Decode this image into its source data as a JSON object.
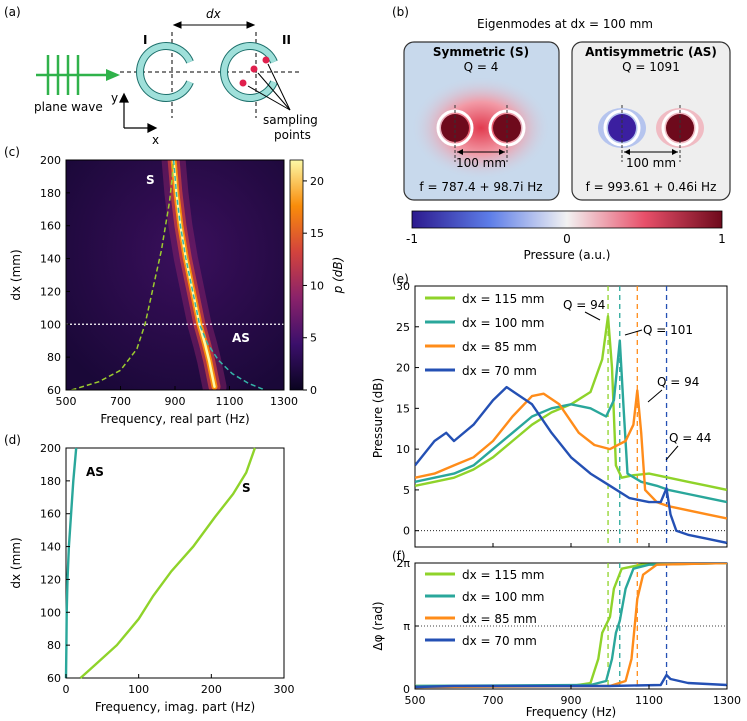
{
  "panel_labels": {
    "a": "(a)",
    "b": "(b)",
    "c": "(c)",
    "d": "(d)",
    "e": "(e)",
    "f": "(f)"
  },
  "schematic": {
    "dx_label": "dx",
    "resonator_1": "I",
    "resonator_2": "II",
    "plane_wave": "plane wave",
    "axis_y": "y",
    "axis_x": "x",
    "sampling_line1": "sampling",
    "sampling_line2": "points"
  },
  "eigenmodes": {
    "title": "Eigenmodes at dx = 100 mm",
    "symmetric": {
      "name": "Symmetric (S)",
      "q": "Q = 4",
      "gap": "100 mm",
      "freq": "f = 787.4 + 98.7i Hz"
    },
    "antisymmetric": {
      "name": "Antisymmetric (AS)",
      "q": "Q = 1091",
      "gap": "100 mm",
      "freq": "f = 993.61 + 0.46i Hz"
    },
    "colorbar": {
      "label": "Pressure (a.u.)",
      "ticks": [
        "-1",
        "0",
        "1"
      ]
    }
  },
  "colors": {
    "c115": "#8fd32a",
    "c100": "#2aa79b",
    "c85": "#ff8c1a",
    "c70": "#2450b4",
    "S_curve": "#9ccc2f",
    "AS_curve": "#35b5a8",
    "panel_bg": "#c8d9ec",
    "cmap_low": "#230e45",
    "cmap_high": "#fbe876"
  },
  "chart_data": [
    {
      "id": "c",
      "type": "heatmap",
      "xlabel": "Frequency, real part (Hz)",
      "ylabel": "dx (mm)",
      "xlim": [
        500,
        1300
      ],
      "ylim": [
        60,
        200
      ],
      "xticks": [
        "500",
        "700",
        "900",
        "1100",
        "1300"
      ],
      "yticks": [
        "60",
        "80",
        "100",
        "120",
        "140",
        "160",
        "180",
        "200"
      ],
      "colorbar": {
        "label": "p (dB)",
        "range": [
          0,
          22
        ],
        "ticks": [
          "0",
          "5",
          "10",
          "15",
          "20"
        ]
      },
      "annotations": [
        "S",
        "AS"
      ],
      "reference_line_dx": 100,
      "S_branch": [
        [
          520,
          60
        ],
        [
          620,
          65
        ],
        [
          700,
          72
        ],
        [
          760,
          85
        ],
        [
          790,
          100
        ],
        [
          810,
          115
        ],
        [
          830,
          130
        ],
        [
          850,
          145
        ],
        [
          865,
          160
        ],
        [
          880,
          175
        ],
        [
          890,
          190
        ],
        [
          895,
          200
        ]
      ],
      "AS_branch": [
        [
          895,
          200
        ],
        [
          905,
          180
        ],
        [
          920,
          160
        ],
        [
          940,
          140
        ],
        [
          965,
          120
        ],
        [
          990,
          100
        ],
        [
          1020,
          88
        ],
        [
          1060,
          78
        ],
        [
          1110,
          70
        ],
        [
          1170,
          64
        ],
        [
          1230,
          60
        ]
      ],
      "ridge": [
        [
          895,
          200
        ],
        [
          905,
          180
        ],
        [
          920,
          160
        ],
        [
          940,
          140
        ],
        [
          965,
          120
        ],
        [
          990,
          100
        ],
        [
          1010,
          88
        ],
        [
          1025,
          78
        ],
        [
          1035,
          70
        ],
        [
          1045,
          62
        ]
      ]
    },
    {
      "id": "d",
      "type": "line",
      "xlabel": "Frequency, imag. part (Hz)",
      "ylabel": "dx (mm)",
      "xlim": [
        0,
        300
      ],
      "ylim": [
        60,
        200
      ],
      "xticks": [
        "0",
        "100",
        "200",
        "300"
      ],
      "yticks": [
        "60",
        "80",
        "100",
        "120",
        "140",
        "160",
        "180",
        "200"
      ],
      "series": [
        {
          "name": "AS",
          "points": [
            [
              0,
              60
            ],
            [
              0.5,
              80
            ],
            [
              1,
              100
            ],
            [
              2,
              120
            ],
            [
              4,
              140
            ],
            [
              7,
              160
            ],
            [
              10,
              180
            ],
            [
              14,
              200
            ]
          ]
        },
        {
          "name": "S",
          "points": [
            [
              20,
              60
            ],
            [
              40,
              68
            ],
            [
              70,
              80
            ],
            [
              100,
              96
            ],
            [
              120,
              110
            ],
            [
              145,
              125
            ],
            [
              175,
              140
            ],
            [
              205,
              158
            ],
            [
              230,
              172
            ],
            [
              248,
              185
            ],
            [
              260,
              200
            ]
          ]
        }
      ]
    },
    {
      "id": "e",
      "type": "line",
      "xlabel": "",
      "ylabel": "Pressure (dB)",
      "xlim": [
        500,
        1300
      ],
      "ylim": [
        -2,
        30
      ],
      "xticks": [
        "500",
        "700",
        "900",
        "1100",
        "1300"
      ],
      "yticks": [
        "0",
        "5",
        "10",
        "15",
        "20",
        "25",
        "30"
      ],
      "annotations": [
        "Q = 94",
        "Q = 101",
        "Q = 94",
        "Q = 44"
      ],
      "vlines": [
        995,
        1025,
        1070,
        1145
      ],
      "series": [
        {
          "name": "dx = 115 mm",
          "points": [
            [
              500,
              5.5
            ],
            [
              550,
              6
            ],
            [
              600,
              6.5
            ],
            [
              650,
              7.5
            ],
            [
              700,
              9
            ],
            [
              750,
              11
            ],
            [
              800,
              13
            ],
            [
              850,
              14.5
            ],
            [
              900,
              15.5
            ],
            [
              950,
              17
            ],
            [
              980,
              21
            ],
            [
              995,
              26.3
            ],
            [
              1005,
              20
            ],
            [
              1015,
              8
            ],
            [
              1030,
              6.5
            ],
            [
              1060,
              6.8
            ],
            [
              1100,
              7
            ],
            [
              1150,
              6.5
            ],
            [
              1200,
              6
            ],
            [
              1250,
              5.5
            ],
            [
              1300,
              5
            ]
          ]
        },
        {
          "name": "dx = 100 mm",
          "points": [
            [
              500,
              6
            ],
            [
              550,
              6.5
            ],
            [
              600,
              7
            ],
            [
              650,
              8
            ],
            [
              700,
              10
            ],
            [
              750,
              12
            ],
            [
              800,
              14
            ],
            [
              850,
              15
            ],
            [
              900,
              15.5
            ],
            [
              950,
              15
            ],
            [
              990,
              14
            ],
            [
              1010,
              16
            ],
            [
              1025,
              23.3
            ],
            [
              1035,
              15
            ],
            [
              1045,
              7
            ],
            [
              1080,
              6
            ],
            [
              1120,
              5.5
            ],
            [
              1150,
              5
            ],
            [
              1200,
              4.5
            ],
            [
              1250,
              4
            ],
            [
              1300,
              3.5
            ]
          ]
        },
        {
          "name": "dx = 85 mm",
          "points": [
            [
              500,
              6.5
            ],
            [
              550,
              7
            ],
            [
              600,
              8
            ],
            [
              650,
              9
            ],
            [
              700,
              11
            ],
            [
              750,
              14
            ],
            [
              800,
              16.5
            ],
            [
              830,
              16.8
            ],
            [
              870,
              15.5
            ],
            [
              920,
              12
            ],
            [
              960,
              10.5
            ],
            [
              1000,
              10
            ],
            [
              1040,
              11
            ],
            [
              1060,
              13
            ],
            [
              1070,
              17.2
            ],
            [
              1080,
              12
            ],
            [
              1090,
              5
            ],
            [
              1120,
              3.5
            ],
            [
              1150,
              3
            ],
            [
              1200,
              2.5
            ],
            [
              1250,
              2
            ],
            [
              1300,
              1.5
            ]
          ]
        },
        {
          "name": "dx = 70 mm",
          "points": [
            [
              500,
              8
            ],
            [
              550,
              11
            ],
            [
              580,
              12
            ],
            [
              600,
              11
            ],
            [
              650,
              13
            ],
            [
              700,
              16
            ],
            [
              735,
              17.6
            ],
            [
              760,
              16.8
            ],
            [
              800,
              15.5
            ],
            [
              850,
              12
            ],
            [
              900,
              9
            ],
            [
              950,
              7
            ],
            [
              1000,
              5.5
            ],
            [
              1050,
              4
            ],
            [
              1100,
              3.5
            ],
            [
              1130,
              3.5
            ],
            [
              1145,
              5.2
            ],
            [
              1155,
              2
            ],
            [
              1170,
              0
            ],
            [
              1200,
              -0.5
            ],
            [
              1250,
              -1
            ],
            [
              1300,
              -1.5
            ]
          ]
        }
      ]
    },
    {
      "id": "f",
      "type": "line",
      "xlabel": "Frequency (Hz)",
      "ylabel": "Δφ (rad)",
      "xlim": [
        500,
        1300
      ],
      "ylim": [
        0,
        6.2832
      ],
      "xticks": [
        "500",
        "700",
        "900",
        "1100",
        "1300"
      ],
      "yticks": [
        "0",
        "π",
        "2π"
      ],
      "vlines": [
        995,
        1025,
        1070,
        1145
      ],
      "series": [
        {
          "name": "dx = 115 mm",
          "points": [
            [
              500,
              0.15
            ],
            [
              900,
              0.15
            ],
            [
              950,
              0.3
            ],
            [
              970,
              1.5
            ],
            [
              980,
              2.8
            ],
            [
              990,
              3.2
            ],
            [
              1000,
              3.6
            ],
            [
              1010,
              5.0
            ],
            [
              1030,
              6.0
            ],
            [
              1080,
              6.2
            ],
            [
              1300,
              6.28
            ]
          ]
        },
        {
          "name": "dx = 100 mm",
          "points": [
            [
              500,
              0.15
            ],
            [
              950,
              0.2
            ],
            [
              990,
              0.4
            ],
            [
              1005,
              1.5
            ],
            [
              1015,
              2.8
            ],
            [
              1025,
              3.4
            ],
            [
              1040,
              5.0
            ],
            [
              1060,
              6.0
            ],
            [
              1100,
              6.2
            ],
            [
              1300,
              6.28
            ]
          ]
        },
        {
          "name": "dx = 85 mm",
          "points": [
            [
              500,
              0.1
            ],
            [
              1000,
              0.15
            ],
            [
              1040,
              0.4
            ],
            [
              1055,
              1.5
            ],
            [
              1065,
              3.5
            ],
            [
              1070,
              4.5
            ],
            [
              1085,
              5.7
            ],
            [
              1120,
              6.2
            ],
            [
              1300,
              6.28
            ]
          ]
        },
        {
          "name": "dx = 70 mm",
          "points": [
            [
              500,
              0.1
            ],
            [
              600,
              0.15
            ],
            [
              800,
              0.15
            ],
            [
              1000,
              0.15
            ],
            [
              1130,
              0.2
            ],
            [
              1145,
              0.7
            ],
            [
              1155,
              0.5
            ],
            [
              1200,
              0.3
            ],
            [
              1250,
              0.25
            ],
            [
              1300,
              0.2
            ]
          ]
        }
      ]
    }
  ]
}
